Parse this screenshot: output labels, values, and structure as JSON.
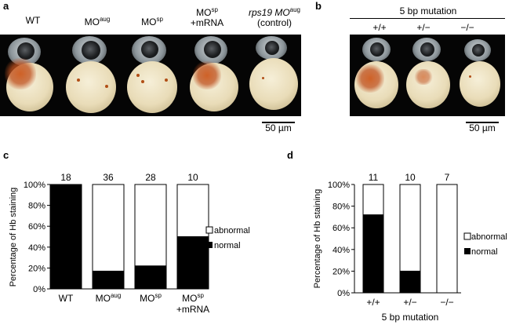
{
  "panel_a": {
    "letter": "a",
    "labels": [
      {
        "line1": "WT",
        "sup1": "",
        "line2": ""
      },
      {
        "line1": "MO",
        "sup1": "aug",
        "line2": ""
      },
      {
        "line1": "MO",
        "sup1": "sp",
        "line2": ""
      },
      {
        "line1": "MO",
        "sup1": "sp",
        "line2": "+mRNA"
      },
      {
        "line1": "rps19 MO",
        "sup1": "aug",
        "line2": "(control)"
      }
    ],
    "scale_bar_label": "50 µm"
  },
  "panel_b": {
    "letter": "b",
    "title": "5 bp mutation",
    "genotypes": [
      "+/+",
      "+/−",
      "−/−"
    ],
    "scale_bar_label": "50 µm"
  },
  "panel_c": {
    "letter": "c",
    "ylabel": "Percentage of Hb staining",
    "yticks": [
      "0%",
      "20%",
      "40%",
      "60%",
      "80%",
      "100%"
    ],
    "legend": {
      "abnormal": "abnormal",
      "normal": "normal"
    },
    "counts": [
      "18",
      "36",
      "28",
      "10"
    ],
    "xlabels": [
      {
        "main": "WT",
        "sup": "",
        "line2": ""
      },
      {
        "main": "MO",
        "sup": "aug",
        "line2": ""
      },
      {
        "main": "MO",
        "sup": "sp",
        "line2": ""
      },
      {
        "main": "MO",
        "sup": "sp",
        "line2": "+mRNA"
      }
    ]
  },
  "panel_d": {
    "letter": "d",
    "ylabel": "Percentage of Hb staining",
    "yticks": [
      "0%",
      "20%",
      "40%",
      "60%",
      "80%",
      "100%"
    ],
    "legend": {
      "abnormal": "abnormal",
      "normal": "normal"
    },
    "counts": [
      "11",
      "10",
      "7"
    ],
    "xlabels": [
      "+/+",
      "+/−",
      "−/−"
    ],
    "xlabel": "5 bp mutation"
  },
  "colors": {
    "normal": "#000000",
    "abnormal": "#ffffff"
  },
  "chart_data": [
    {
      "type": "bar",
      "stacked": true,
      "categories": [
        "WT",
        "MOaug",
        "MOsp",
        "MOsp +mRNA"
      ],
      "series": [
        {
          "name": "normal",
          "values": [
            100,
            17,
            22,
            50
          ]
        },
        {
          "name": "abnormal",
          "values": [
            0,
            83,
            78,
            50
          ]
        }
      ],
      "counts": [
        18,
        36,
        28,
        10
      ],
      "ylabel": "Percentage of Hb staining",
      "ylim": [
        0,
        100
      ],
      "legend_position": "right"
    },
    {
      "type": "bar",
      "stacked": true,
      "categories": [
        "+/+",
        "+/−",
        "−/−"
      ],
      "series": [
        {
          "name": "normal",
          "values": [
            72,
            20,
            0
          ]
        },
        {
          "name": "abnormal",
          "values": [
            28,
            80,
            100
          ]
        }
      ],
      "counts": [
        11,
        10,
        7
      ],
      "xlabel": "5 bp mutation",
      "ylabel": "Percentage of Hb staining",
      "ylim": [
        0,
        100
      ],
      "legend_position": "right"
    }
  ]
}
